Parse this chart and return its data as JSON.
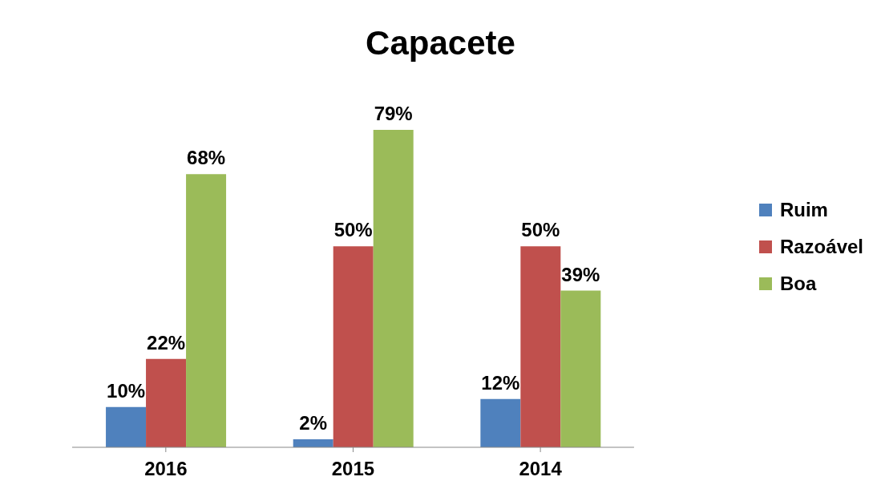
{
  "chart_data": {
    "type": "bar",
    "title": "Capacete",
    "categories": [
      "2016",
      "2015",
      "2014"
    ],
    "series": [
      {
        "name": "Ruim",
        "color": "#4f81bd",
        "values": [
          10,
          2,
          12
        ],
        "value_labels": [
          "10%",
          "2%",
          "12%"
        ]
      },
      {
        "name": "Razoável",
        "color": "#c0504d",
        "values": [
          22,
          50,
          50
        ],
        "value_labels": [
          "22%",
          "50%",
          "50%"
        ]
      },
      {
        "name": "Boa",
        "color": "#9bbb59",
        "values": [
          68,
          79,
          39
        ],
        "value_labels": [
          "68%",
          "79%",
          "39%"
        ]
      }
    ],
    "legend": "right",
    "grid": false
  }
}
